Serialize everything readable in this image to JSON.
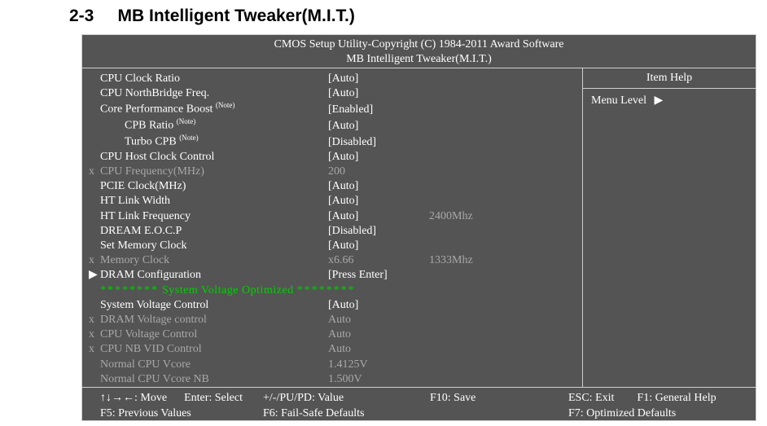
{
  "section": {
    "number": "2-3",
    "title": "MB Intelligent Tweaker(M.I.T.)"
  },
  "bios": {
    "header_line1": "CMOS Setup Utility-Copyright (C) 1984-2011 Award Software",
    "header_line2": "MB Intelligent Tweaker(M.I.T.)",
    "help": {
      "title": "Item Help",
      "menu_level_label": "Menu Level",
      "menu_level_arrow": "▶"
    },
    "rows": [
      {
        "mark": "",
        "label": "CPU Clock Ratio",
        "value": "[Auto]",
        "extra": "",
        "state": "enabled",
        "indent": 0,
        "note": false
      },
      {
        "mark": "",
        "label": "CPU NorthBridge Freq.",
        "value": "[Auto]",
        "extra": "",
        "state": "enabled",
        "indent": 0,
        "note": false
      },
      {
        "mark": "",
        "label": "Core Performance Boost",
        "value": "[Enabled]",
        "extra": "",
        "state": "enabled",
        "indent": 0,
        "note": true
      },
      {
        "mark": "",
        "label": "CPB Ratio",
        "value": "[Auto]",
        "extra": "",
        "state": "enabled",
        "indent": 1,
        "note": true
      },
      {
        "mark": "",
        "label": "Turbo CPB",
        "value": "[Disabled]",
        "extra": "",
        "state": "enabled",
        "indent": 1,
        "note": true
      },
      {
        "mark": "",
        "label": "CPU Host Clock Control",
        "value": "[Auto]",
        "extra": "",
        "state": "enabled",
        "indent": 0,
        "note": false
      },
      {
        "mark": "x",
        "label": "CPU Frequency(MHz)",
        "value": " 200",
        "extra": "",
        "state": "disabled",
        "indent": 0,
        "note": false
      },
      {
        "mark": "",
        "label": "PCIE Clock(MHz)",
        "value": "[Auto]",
        "extra": "",
        "state": "enabled",
        "indent": 0,
        "note": false
      },
      {
        "mark": "",
        "label": "HT Link Width",
        "value": "[Auto]",
        "extra": "",
        "state": "enabled",
        "indent": 0,
        "note": false
      },
      {
        "mark": "",
        "label": "HT Link Frequency",
        "value": "[Auto]",
        "extra": "2400Mhz",
        "state": "enabled",
        "indent": 0,
        "note": false
      },
      {
        "mark": "",
        "label": "DREAM E.O.C.P",
        "value": "[Disabled]",
        "extra": "",
        "state": "enabled",
        "indent": 0,
        "note": false
      },
      {
        "mark": "",
        "label": "Set Memory Clock",
        "value": "[Auto]",
        "extra": "",
        "state": "enabled",
        "indent": 0,
        "note": false
      },
      {
        "mark": "x",
        "label": "Memory Clock",
        "value": " x6.66",
        "extra": "1333Mhz",
        "state": "disabled",
        "indent": 0,
        "note": false
      },
      {
        "mark": "▶",
        "label": "DRAM Configuration",
        "value": "[Press Enter]",
        "extra": "",
        "state": "enabled",
        "indent": 0,
        "note": false
      },
      {
        "type": "divider",
        "text": "System Voltage Optimized"
      },
      {
        "mark": "",
        "label": "System Voltage Control",
        "value": "[Auto]",
        "extra": "",
        "state": "enabled",
        "indent": 0,
        "note": false
      },
      {
        "mark": "x",
        "label": "DRAM Voltage control",
        "value": " Auto",
        "extra": "",
        "state": "disabled",
        "indent": 0,
        "note": false
      },
      {
        "mark": "x",
        "label": "CPU Voltage Control",
        "value": " Auto",
        "extra": "",
        "state": "disabled",
        "indent": 0,
        "note": false
      },
      {
        "mark": "x",
        "label": "CPU NB VID Control",
        "value": " Auto",
        "extra": "",
        "state": "disabled",
        "indent": 0,
        "note": false
      },
      {
        "mark": "",
        "label": "Normal CPU Vcore",
        "value": " 1.4125V",
        "extra": "",
        "state": "disabled",
        "indent": 0,
        "note": false
      },
      {
        "mark": "",
        "label": "Normal CPU Vcore NB",
        "value": " 1.500V",
        "extra": "",
        "state": "disabled",
        "indent": 0,
        "note": false
      }
    ],
    "divider_stars": "********",
    "note_text": "(Note)",
    "footer": {
      "r1c1a": "↑↓→←: Move",
      "r1c1b": "Enter: Select",
      "r1c2": "+/-/PU/PD: Value",
      "r1c3": "F10: Save",
      "r1c4a": "ESC: Exit",
      "r1c4b": "F1: General Help",
      "r2c1": "F5: Previous Values",
      "r2c2": "F6: Fail-Safe Defaults",
      "r2c3": "",
      "r2c4": "F7: Optimized Defaults"
    }
  },
  "colors": {
    "page_bg": "#ffffff",
    "bios_bg": "#545454",
    "border": "#d0d0d0",
    "text": "#ffffff",
    "disabled_text": "#a8a8a8",
    "divider_text": "#00d000"
  }
}
